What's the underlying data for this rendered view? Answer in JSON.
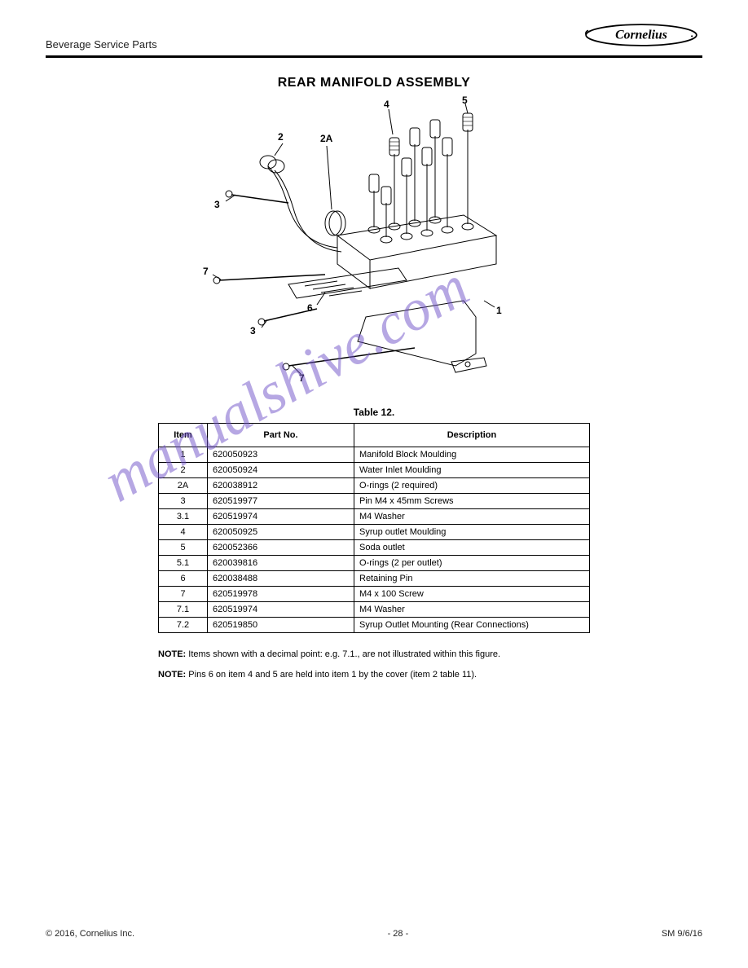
{
  "header": {
    "title": "Beverage Service Parts",
    "logo_text": "Cornelius"
  },
  "section_title": "REAR MANIFOLD ASSEMBLY",
  "diagram": {
    "type": "technical-drawing",
    "description": "Exploded view of rear manifold assembly with numbered callouts",
    "callouts": [
      "1",
      "2",
      "2A",
      "3",
      "4",
      "5",
      "6",
      "7"
    ],
    "line_color": "#000000",
    "background_color": "#ffffff"
  },
  "watermark_text": "manualshive.com",
  "table": {
    "title": "Table 12.",
    "columns": [
      "Item",
      "Part No.",
      "Description"
    ],
    "rows": [
      [
        "1",
        "620050923",
        "Manifold Block Moulding"
      ],
      [
        "2",
        "620050924",
        "Water Inlet Moulding"
      ],
      [
        "2A",
        "620038912",
        "O-rings (2 required)"
      ],
      [
        "3",
        "620519977",
        "Pin M4 x 45mm Screws"
      ],
      [
        "3.1",
        "620519974",
        "M4 Washer"
      ],
      [
        "4",
        "620050925",
        "Syrup outlet Moulding"
      ],
      [
        "5",
        "620052366",
        "Soda outlet"
      ],
      [
        "5.1",
        "620039816",
        "O-rings (2 per outlet)"
      ],
      [
        "6",
        "620038488",
        "Retaining Pin"
      ],
      [
        "7",
        "620519978",
        "M4 x 100 Screw"
      ],
      [
        "7.1",
        "620519974",
        "M4 Washer"
      ],
      [
        "7.2",
        "620519850",
        "Syrup Outlet Mounting (Rear Connections)"
      ]
    ]
  },
  "notes": [
    {
      "bold": "NOTE:",
      "text": " Items shown with a decimal point: e.g. 7.1., are not illustrated within this figure."
    },
    {
      "bold": "NOTE:",
      "text": " Pins 6 on item 4 and 5 are held into item 1 by the cover (item 2 table 11)."
    }
  ],
  "footer": {
    "left": "© 2016, Cornelius Inc.",
    "center": "- 28 -",
    "right": "SM 9/6/16"
  }
}
